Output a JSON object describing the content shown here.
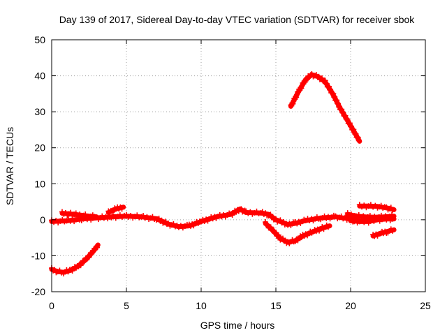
{
  "chart_data": {
    "type": "scatter",
    "title": "Day 139 of 2017, Sidereal Day-to-day VTEC variation (SDTVAR) for receiver sbok",
    "xlabel": "GPS time / hours",
    "ylabel": "SDTVAR / TECUs",
    "xlim": [
      0,
      25
    ],
    "ylim": [
      -20,
      50
    ],
    "xticks": [
      0,
      5,
      10,
      15,
      20,
      25
    ],
    "yticks": [
      -20,
      -10,
      0,
      10,
      20,
      30,
      40,
      50
    ],
    "grid": true,
    "series_color": "#ff0000",
    "series": [
      {
        "name": "arc-baseline-main",
        "points": [
          [
            0.0,
            -0.5
          ],
          [
            1.0,
            -0.3
          ],
          [
            2.0,
            0.2
          ],
          [
            3.0,
            0.5
          ],
          [
            4.0,
            0.8
          ],
          [
            5.0,
            1.0
          ],
          [
            6.0,
            0.8
          ],
          [
            7.0,
            0.3
          ],
          [
            7.8,
            -1.2
          ],
          [
            8.5,
            -1.9
          ],
          [
            9.2,
            -1.7
          ],
          [
            10.0,
            -0.5
          ],
          [
            11.0,
            0.8
          ],
          [
            12.0,
            1.5
          ],
          [
            12.6,
            3.0
          ],
          [
            13.0,
            2.0
          ],
          [
            14.0,
            1.9
          ],
          [
            14.5,
            1.5
          ],
          [
            15.0,
            0.0
          ],
          [
            15.8,
            -1.3
          ],
          [
            16.3,
            -1.0
          ],
          [
            17.0,
            -0.2
          ],
          [
            18.0,
            0.5
          ],
          [
            19.0,
            0.8
          ],
          [
            20.0,
            0.2
          ],
          [
            20.6,
            -0.5
          ]
        ]
      },
      {
        "name": "arc-baseline-upper",
        "points": [
          [
            0.7,
            1.8
          ],
          [
            1.5,
            1.5
          ],
          [
            2.5,
            1.0
          ],
          [
            3.0,
            0.8
          ]
        ]
      },
      {
        "name": "arc-bump-h4",
        "points": [
          [
            3.8,
            2.0
          ],
          [
            4.3,
            3.0
          ],
          [
            4.8,
            3.5
          ]
        ]
      },
      {
        "name": "arc-morning-low",
        "points": [
          [
            0.0,
            -13.8
          ],
          [
            0.4,
            -14.4
          ],
          [
            0.8,
            -14.6
          ],
          [
            1.3,
            -14.0
          ],
          [
            1.8,
            -12.8
          ],
          [
            2.3,
            -11.0
          ],
          [
            2.8,
            -8.7
          ],
          [
            3.1,
            -7.0
          ]
        ]
      },
      {
        "name": "arc-afternoon-dip",
        "points": [
          [
            14.3,
            -1.0
          ],
          [
            14.8,
            -3.0
          ],
          [
            15.3,
            -5.2
          ],
          [
            15.8,
            -6.3
          ],
          [
            16.3,
            -5.8
          ],
          [
            16.8,
            -4.5
          ],
          [
            17.5,
            -3.3
          ],
          [
            18.2,
            -2.2
          ],
          [
            18.6,
            -1.7
          ]
        ]
      },
      {
        "name": "arc-afternoon-peak",
        "points": [
          [
            16.0,
            31.5
          ],
          [
            16.5,
            35.5
          ],
          [
            17.0,
            39.0
          ],
          [
            17.4,
            40.3
          ],
          [
            17.8,
            39.8
          ],
          [
            18.3,
            38.3
          ],
          [
            18.8,
            35.0
          ],
          [
            19.3,
            31.0
          ],
          [
            19.8,
            27.5
          ],
          [
            20.3,
            24.0
          ],
          [
            20.6,
            21.8
          ]
        ]
      },
      {
        "name": "arc-late-upper",
        "points": [
          [
            20.6,
            3.8
          ],
          [
            21.2,
            3.8
          ],
          [
            21.8,
            3.7
          ],
          [
            22.4,
            3.3
          ],
          [
            22.9,
            2.8
          ]
        ]
      },
      {
        "name": "arc-late-mid",
        "points": [
          [
            19.8,
            1.5
          ],
          [
            20.4,
            1.0
          ],
          [
            21.0,
            0.8
          ],
          [
            21.6,
            0.7
          ],
          [
            22.2,
            0.8
          ],
          [
            22.9,
            1.0
          ]
        ]
      },
      {
        "name": "arc-late-base",
        "points": [
          [
            20.0,
            -0.3
          ],
          [
            20.6,
            -0.5
          ],
          [
            21.2,
            -0.5
          ],
          [
            21.8,
            0.0
          ],
          [
            22.4,
            0.2
          ],
          [
            22.9,
            0.2
          ]
        ]
      },
      {
        "name": "arc-late-low",
        "points": [
          [
            21.5,
            -4.5
          ],
          [
            22.0,
            -3.8
          ],
          [
            22.5,
            -3.2
          ],
          [
            22.9,
            -2.8
          ]
        ]
      }
    ]
  }
}
